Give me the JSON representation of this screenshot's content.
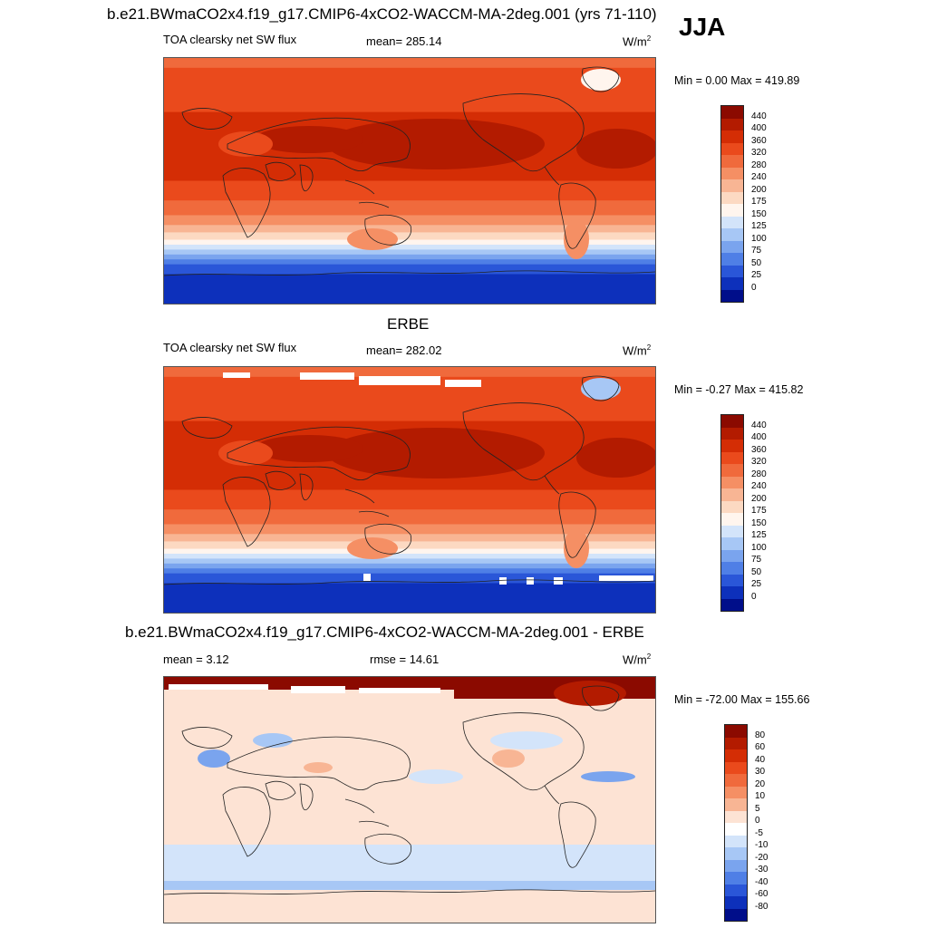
{
  "main_title": "b.e21.BWmaCO2x4.f19_g17.CMIP6-4xCO2-WACCM-MA-2deg.001 (yrs 71-110)",
  "season": "JJA",
  "chart_data": [
    {
      "type": "heatmap",
      "panel": "model",
      "title": "b.e21.BWmaCO2x4.f19_g17.CMIP6-4xCO2-WACCM-MA-2deg.001 (yrs 71-110)",
      "left_label": "TOA clearsky net SW flux",
      "center_label": "mean= 285.14",
      "units": "W/m",
      "units_sup": "2",
      "min_max": "Min =   0.00 Max = 419.89",
      "min": 0.0,
      "max": 419.89,
      "mean": 285.14,
      "levels": [
        "440",
        "400",
        "360",
        "320",
        "280",
        "240",
        "200",
        "175",
        "150",
        "125",
        "100",
        "75",
        "50",
        "25",
        "0"
      ],
      "colors": [
        "#8b0a00",
        "#b31b00",
        "#d42d05",
        "#ea4a1c",
        "#f06a3c",
        "#f58f64",
        "#f8b594",
        "#fcd9c2",
        "#fff5ee",
        "#d3e4fa",
        "#a7c7f5",
        "#7aa4ee",
        "#4f7fe6",
        "#2a56d8",
        "#0d30bb",
        "#000e8a"
      ]
    },
    {
      "type": "heatmap",
      "panel": "obs",
      "title": "ERBE",
      "left_label": "TOA clearsky net SW flux",
      "center_label": "mean= 282.02",
      "units": "W/m",
      "units_sup": "2",
      "min_max": "Min =  -0.27 Max = 415.82",
      "min": -0.27,
      "max": 415.82,
      "mean": 282.02,
      "levels": [
        "440",
        "400",
        "360",
        "320",
        "280",
        "240",
        "200",
        "175",
        "150",
        "125",
        "100",
        "75",
        "50",
        "25",
        "0"
      ],
      "colors": [
        "#8b0a00",
        "#b31b00",
        "#d42d05",
        "#ea4a1c",
        "#f06a3c",
        "#f58f64",
        "#f8b594",
        "#fcd9c2",
        "#fff5ee",
        "#d3e4fa",
        "#a7c7f5",
        "#7aa4ee",
        "#4f7fe6",
        "#2a56d8",
        "#0d30bb",
        "#000e8a"
      ]
    },
    {
      "type": "heatmap",
      "panel": "diff",
      "title": "b.e21.BWmaCO2x4.f19_g17.CMIP6-4xCO2-WACCM-MA-2deg.001 - ERBE",
      "left_label": "mean =   3.12",
      "center_label": "rmse =  14.61",
      "units": "W/m",
      "units_sup": "2",
      "min_max": "Min = -72.00 Max = 155.66",
      "min": -72.0,
      "max": 155.66,
      "mean": 3.12,
      "rmse": 14.61,
      "levels": [
        "80",
        "60",
        "40",
        "30",
        "20",
        "10",
        "5",
        "0",
        "-5",
        "-10",
        "-20",
        "-30",
        "-40",
        "-60",
        "-80"
      ],
      "colors": [
        "#8b0a00",
        "#b31b00",
        "#d42d05",
        "#ea4a1c",
        "#f06a3c",
        "#f58f64",
        "#f8b594",
        "#fde3d4",
        "#ffffff",
        "#d3e4fa",
        "#a7c7f5",
        "#7aa4ee",
        "#4f7fe6",
        "#2a56d8",
        "#0d30bb",
        "#000e8a"
      ]
    }
  ]
}
